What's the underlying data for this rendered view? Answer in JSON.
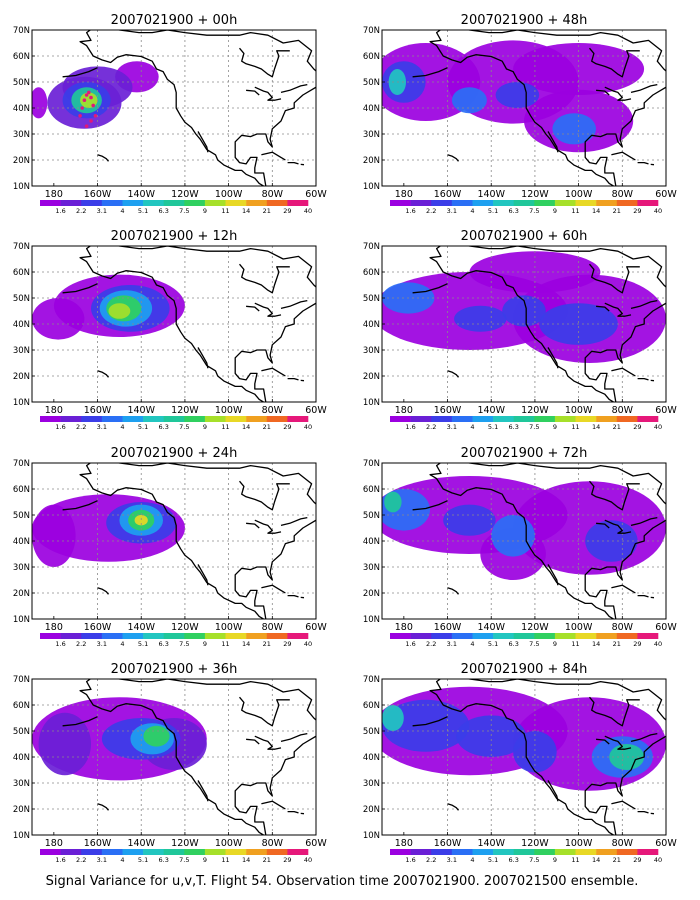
{
  "chart_data": {
    "type": "heatmap",
    "caption": "Signal Variance for u,v,T. Flight 54. Observation time 2007021900. 2007021500 ensemble.",
    "colorbar": {
      "labels": [
        "1.6",
        "2.2",
        "3.1",
        "4",
        "5.1",
        "6.3",
        "7.5",
        "9",
        "11",
        "14",
        "21",
        "29",
        "40"
      ],
      "colors": [
        "#9b00e0",
        "#6a1fd6",
        "#3b3de8",
        "#2a6ff5",
        "#1ea0f0",
        "#22c6c0",
        "#20c79a",
        "#30d060",
        "#a6e02a",
        "#e8d826",
        "#f0a020",
        "#f06822",
        "#e6187a"
      ]
    },
    "xticks": [
      "180",
      "160W",
      "140W",
      "120W",
      "100W",
      "80W",
      "60W"
    ],
    "yticks": [
      "10N",
      "20N",
      "30N",
      "40N",
      "50N",
      "60N",
      "70N"
    ],
    "xrange": [
      -190,
      -60
    ],
    "yrange": [
      10,
      70
    ],
    "grid": true,
    "panels": [
      {
        "title": "2007021900 + 00h",
        "blobs": [
          {
            "lon": -166,
            "lat": 42,
            "rx": 17,
            "ry": 10,
            "level": 1
          },
          {
            "lon": -160,
            "lat": 48,
            "rx": 16,
            "ry": 8,
            "level": 1
          },
          {
            "lon": -142,
            "lat": 52,
            "rx": 10,
            "ry": 6,
            "level": 0
          },
          {
            "lon": -187,
            "lat": 42,
            "rx": 4,
            "ry": 6,
            "level": 0
          },
          {
            "lon": -165,
            "lat": 43,
            "rx": 11,
            "ry": 7,
            "level": 2
          },
          {
            "lon": -165,
            "lat": 43,
            "rx": 7,
            "ry": 5,
            "level": 6
          },
          {
            "lon": -164,
            "lat": 43,
            "rx": 4,
            "ry": 3,
            "level": 8
          }
        ],
        "track": [
          [
            -168,
            37
          ],
          [
            -167,
            40
          ],
          [
            -166,
            43
          ],
          [
            -165,
            45
          ],
          [
            -164,
            46
          ],
          [
            -163,
            44
          ],
          [
            -162,
            41
          ],
          [
            -161,
            37
          ],
          [
            -163,
            35
          ],
          [
            -165,
            33
          ]
        ]
      },
      {
        "title": "2007021900 + 48h",
        "blobs": [
          {
            "lon": -170,
            "lat": 50,
            "rx": 25,
            "ry": 15,
            "level": 0
          },
          {
            "lon": -130,
            "lat": 50,
            "rx": 30,
            "ry": 16,
            "level": 0
          },
          {
            "lon": -100,
            "lat": 35,
            "rx": 25,
            "ry": 12,
            "level": 0
          },
          {
            "lon": -100,
            "lat": 55,
            "rx": 30,
            "ry": 10,
            "level": 0
          },
          {
            "lon": -180,
            "lat": 50,
            "rx": 10,
            "ry": 8,
            "level": 2
          },
          {
            "lon": -102,
            "lat": 32,
            "rx": 10,
            "ry": 6,
            "level": 3
          },
          {
            "lon": -150,
            "lat": 43,
            "rx": 8,
            "ry": 5,
            "level": 3
          },
          {
            "lon": -128,
            "lat": 45,
            "rx": 10,
            "ry": 5,
            "level": 2
          },
          {
            "lon": -183,
            "lat": 50,
            "rx": 4,
            "ry": 5,
            "level": 5
          }
        ]
      },
      {
        "title": "2007021900 + 12h",
        "blobs": [
          {
            "lon": -150,
            "lat": 47,
            "rx": 30,
            "ry": 12,
            "level": 0
          },
          {
            "lon": -178,
            "lat": 42,
            "rx": 12,
            "ry": 8,
            "level": 0
          },
          {
            "lon": -145,
            "lat": 46,
            "rx": 18,
            "ry": 9,
            "level": 2
          },
          {
            "lon": -147,
            "lat": 46,
            "rx": 12,
            "ry": 7,
            "level": 4
          },
          {
            "lon": -148,
            "lat": 46,
            "rx": 8,
            "ry": 5,
            "level": 7
          },
          {
            "lon": -150,
            "lat": 45,
            "rx": 5,
            "ry": 3,
            "level": 8
          }
        ]
      },
      {
        "title": "2007021900 + 60h",
        "blobs": [
          {
            "lon": -150,
            "lat": 45,
            "rx": 45,
            "ry": 15,
            "level": 0
          },
          {
            "lon": -95,
            "lat": 42,
            "rx": 35,
            "ry": 17,
            "level": 0
          },
          {
            "lon": -120,
            "lat": 60,
            "rx": 30,
            "ry": 8,
            "level": 0
          },
          {
            "lon": -178,
            "lat": 50,
            "rx": 12,
            "ry": 6,
            "level": 3
          },
          {
            "lon": -125,
            "lat": 45,
            "rx": 10,
            "ry": 6,
            "level": 2
          },
          {
            "lon": -100,
            "lat": 40,
            "rx": 18,
            "ry": 8,
            "level": 2
          },
          {
            "lon": -145,
            "lat": 42,
            "rx": 12,
            "ry": 5,
            "level": 2
          }
        ]
      },
      {
        "title": "2007021900 + 24h",
        "blobs": [
          {
            "lon": -155,
            "lat": 45,
            "rx": 35,
            "ry": 13,
            "level": 0
          },
          {
            "lon": -180,
            "lat": 42,
            "rx": 10,
            "ry": 12,
            "level": 0
          },
          {
            "lon": -140,
            "lat": 47,
            "rx": 16,
            "ry": 8,
            "level": 2
          },
          {
            "lon": -140,
            "lat": 48,
            "rx": 10,
            "ry": 6,
            "level": 4
          },
          {
            "lon": -140,
            "lat": 48,
            "rx": 6,
            "ry": 4,
            "level": 7
          },
          {
            "lon": -140,
            "lat": 48,
            "rx": 3,
            "ry": 2,
            "level": 9
          }
        ]
      },
      {
        "title": "2007021900 + 72h",
        "blobs": [
          {
            "lon": -150,
            "lat": 50,
            "rx": 45,
            "ry": 15,
            "level": 0
          },
          {
            "lon": -95,
            "lat": 45,
            "rx": 35,
            "ry": 18,
            "level": 0
          },
          {
            "lon": -130,
            "lat": 35,
            "rx": 15,
            "ry": 10,
            "level": 0
          },
          {
            "lon": -180,
            "lat": 52,
            "rx": 12,
            "ry": 8,
            "level": 3
          },
          {
            "lon": -130,
            "lat": 42,
            "rx": 10,
            "ry": 8,
            "level": 3
          },
          {
            "lon": -85,
            "lat": 40,
            "rx": 12,
            "ry": 8,
            "level": 2
          },
          {
            "lon": -150,
            "lat": 48,
            "rx": 12,
            "ry": 6,
            "level": 2
          },
          {
            "lon": -185,
            "lat": 55,
            "rx": 4,
            "ry": 4,
            "level": 6
          }
        ]
      },
      {
        "title": "2007021900 + 36h",
        "blobs": [
          {
            "lon": -150,
            "lat": 47,
            "rx": 40,
            "ry": 16,
            "level": 0
          },
          {
            "lon": -175,
            "lat": 45,
            "rx": 12,
            "ry": 12,
            "level": 1
          },
          {
            "lon": -125,
            "lat": 45,
            "rx": 15,
            "ry": 10,
            "level": 1
          },
          {
            "lon": -140,
            "lat": 47,
            "rx": 18,
            "ry": 8,
            "level": 2
          },
          {
            "lon": -135,
            "lat": 47,
            "rx": 10,
            "ry": 6,
            "level": 4
          },
          {
            "lon": -133,
            "lat": 48,
            "rx": 6,
            "ry": 4,
            "level": 7
          }
        ]
      },
      {
        "title": "2007021900 + 84h",
        "blobs": [
          {
            "lon": -150,
            "lat": 50,
            "rx": 45,
            "ry": 17,
            "level": 0
          },
          {
            "lon": -95,
            "lat": 45,
            "rx": 35,
            "ry": 18,
            "level": 0
          },
          {
            "lon": -170,
            "lat": 52,
            "rx": 20,
            "ry": 10,
            "level": 2
          },
          {
            "lon": -140,
            "lat": 48,
            "rx": 16,
            "ry": 8,
            "level": 2
          },
          {
            "lon": -80,
            "lat": 40,
            "rx": 14,
            "ry": 8,
            "level": 3
          },
          {
            "lon": -78,
            "lat": 40,
            "rx": 8,
            "ry": 5,
            "level": 6
          },
          {
            "lon": -120,
            "lat": 42,
            "rx": 10,
            "ry": 8,
            "level": 2
          },
          {
            "lon": -185,
            "lat": 55,
            "rx": 5,
            "ry": 5,
            "level": 5
          }
        ]
      }
    ]
  }
}
